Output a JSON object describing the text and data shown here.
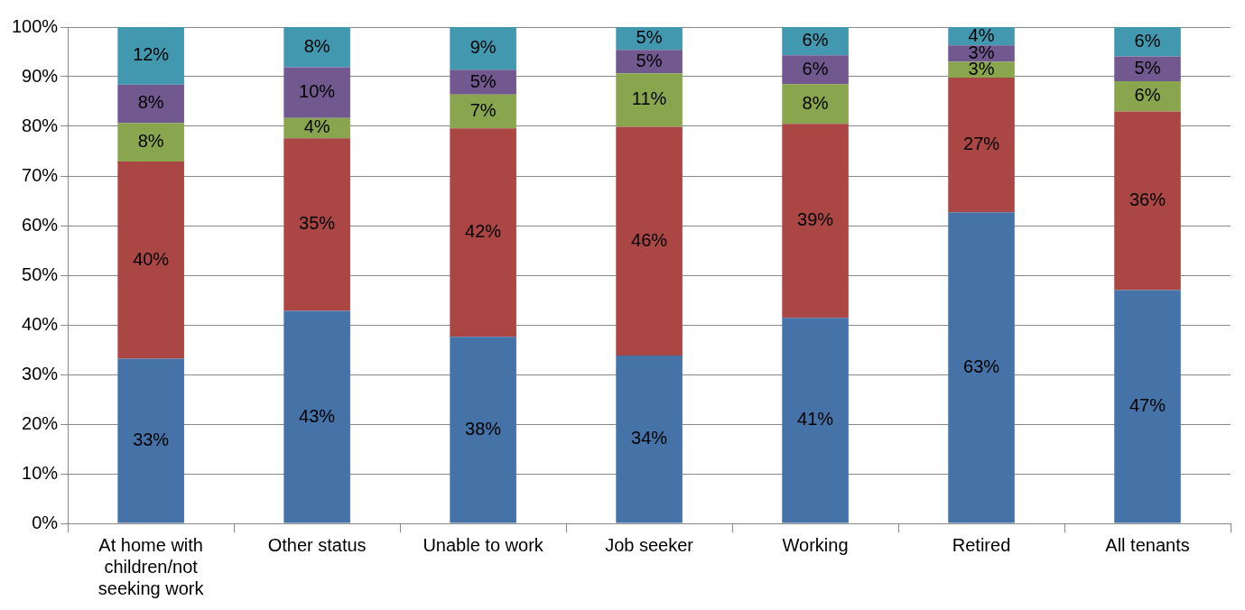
{
  "chart_data": {
    "type": "bar",
    "stacked": true,
    "categories": [
      "At home with children/not seeking work",
      "Other status",
      "Unable to work",
      "Job seeker",
      "Working",
      "Retired",
      "All tenants"
    ],
    "series": [
      {
        "color": "#4572a7",
        "values": [
          33.2,
          42.8,
          37.6,
          33.8,
          41.4,
          62.7,
          47.0
        ],
        "value_labels": [
          "33%",
          "43%",
          "38%",
          "34%",
          "41%",
          "63%",
          "47%"
        ]
      },
      {
        "color": "#aa4643",
        "values": [
          39.7,
          34.8,
          42.0,
          46.1,
          39.1,
          27.1,
          36.0
        ],
        "value_labels": [
          "40%",
          "35%",
          "42%",
          "46%",
          "39%",
          "27%",
          "36%"
        ]
      },
      {
        "color": "#89a54e",
        "values": [
          7.8,
          4.1,
          6.8,
          10.8,
          8.0,
          3.2,
          6.1
        ],
        "value_labels": [
          "8%",
          "4%",
          "7%",
          "11%",
          "8%",
          "3%",
          "6%"
        ]
      },
      {
        "color": "#71588f",
        "values": [
          7.7,
          10.2,
          5.0,
          4.7,
          5.8,
          3.3,
          5.0
        ],
        "value_labels": [
          "8%",
          "10%",
          "5%",
          "5%",
          "6%",
          "3%",
          "5%"
        ]
      },
      {
        "color": "#4198af",
        "values": [
          11.6,
          8.1,
          8.6,
          4.6,
          5.7,
          3.7,
          5.9
        ],
        "value_labels": [
          "12%",
          "8%",
          "9%",
          "5%",
          "6%",
          "4%",
          "6%"
        ]
      }
    ],
    "ylim": [
      0,
      100
    ],
    "yticks": [
      {
        "value": 0,
        "label": "0%"
      },
      {
        "value": 10,
        "label": "10%"
      },
      {
        "value": 20,
        "label": "20%"
      },
      {
        "value": 30,
        "label": "30%"
      },
      {
        "value": 40,
        "label": "40%"
      },
      {
        "value": 50,
        "label": "50%"
      },
      {
        "value": 60,
        "label": "60%"
      },
      {
        "value": 70,
        "label": "70%"
      },
      {
        "value": 80,
        "label": "80%"
      },
      {
        "value": 90,
        "label": "90%"
      },
      {
        "value": 100,
        "label": "100%"
      }
    ],
    "grid": "y",
    "legend": false
  }
}
